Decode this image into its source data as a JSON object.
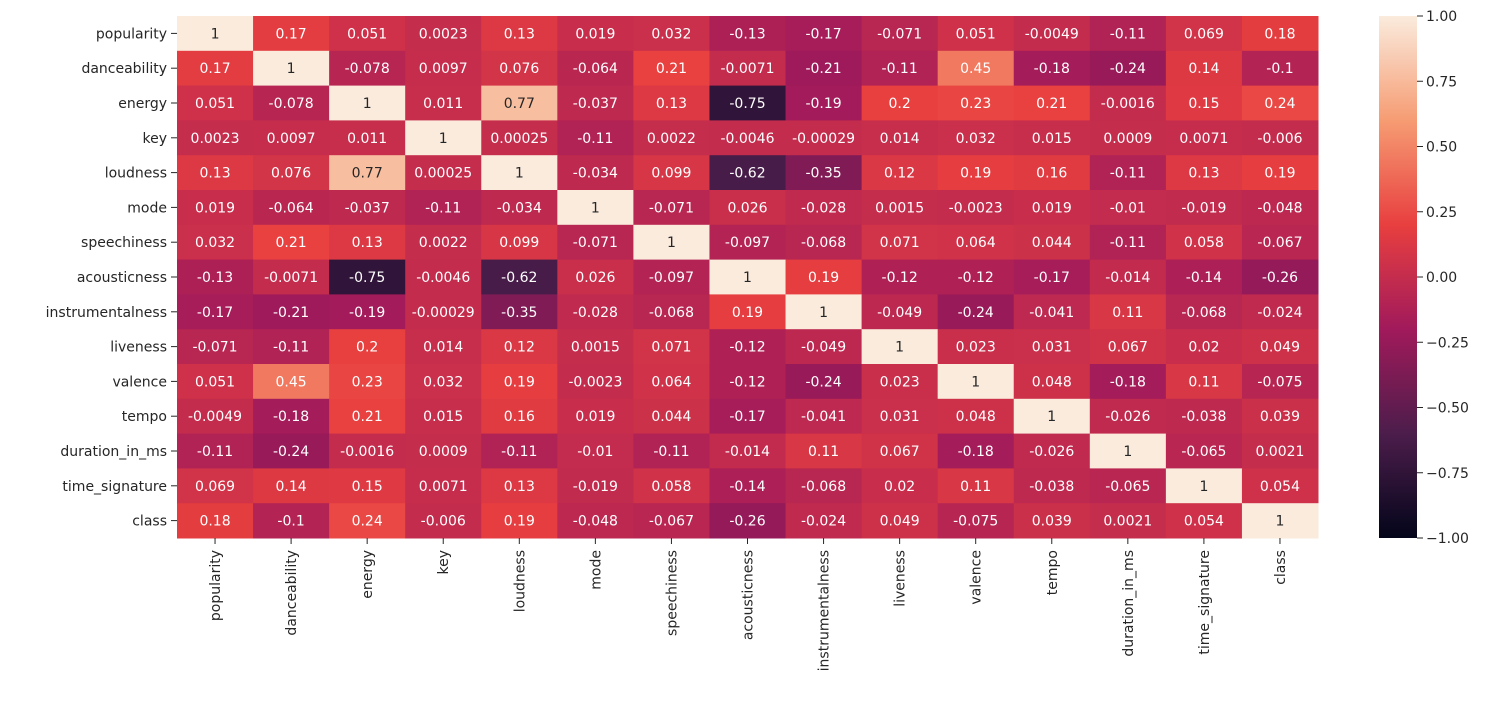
{
  "chart_data": {
    "type": "heatmap",
    "labels": [
      "popularity",
      "danceability",
      "energy",
      "key",
      "loudness",
      "mode",
      "speechiness",
      "acousticness",
      "instrumentalness",
      "liveness",
      "valence",
      "tempo",
      "duration_in_ms",
      "time_signature",
      "class"
    ],
    "cell_labels": [
      [
        "1",
        "0.17",
        "0.051",
        "0.0023",
        "0.13",
        "0.019",
        "0.032",
        "-0.13",
        "-0.17",
        "-0.071",
        "0.051",
        "-0.0049",
        "-0.11",
        "0.069",
        "0.18"
      ],
      [
        "0.17",
        "1",
        "-0.078",
        "0.0097",
        "0.076",
        "-0.064",
        "0.21",
        "-0.0071",
        "-0.21",
        "-0.11",
        "0.45",
        "-0.18",
        "-0.24",
        "0.14",
        "-0.1"
      ],
      [
        "0.051",
        "-0.078",
        "1",
        "0.011",
        "0.77",
        "-0.037",
        "0.13",
        "-0.75",
        "-0.19",
        "0.2",
        "0.23",
        "0.21",
        "-0.0016",
        "0.15",
        "0.24"
      ],
      [
        "0.0023",
        "0.0097",
        "0.011",
        "1",
        "0.00025",
        "-0.11",
        "0.0022",
        "-0.0046",
        "-0.00029",
        "0.014",
        "0.032",
        "0.015",
        "0.0009",
        "0.0071",
        "-0.006"
      ],
      [
        "0.13",
        "0.076",
        "0.77",
        "0.00025",
        "1",
        "-0.034",
        "0.099",
        "-0.62",
        "-0.35",
        "0.12",
        "0.19",
        "0.16",
        "-0.11",
        "0.13",
        "0.19"
      ],
      [
        "0.019",
        "-0.064",
        "-0.037",
        "-0.11",
        "-0.034",
        "1",
        "-0.071",
        "0.026",
        "-0.028",
        "0.0015",
        "-0.0023",
        "0.019",
        "-0.01",
        "-0.019",
        "-0.048"
      ],
      [
        "0.032",
        "0.21",
        "0.13",
        "0.0022",
        "0.099",
        "-0.071",
        "1",
        "-0.097",
        "-0.068",
        "0.071",
        "0.064",
        "0.044",
        "-0.11",
        "0.058",
        "-0.067"
      ],
      [
        "-0.13",
        "-0.0071",
        "-0.75",
        "-0.0046",
        "-0.62",
        "0.026",
        "-0.097",
        "1",
        "0.19",
        "-0.12",
        "-0.12",
        "-0.17",
        "-0.014",
        "-0.14",
        "-0.26"
      ],
      [
        "-0.17",
        "-0.21",
        "-0.19",
        "-0.00029",
        "-0.35",
        "-0.028",
        "-0.068",
        "0.19",
        "1",
        "-0.049",
        "-0.24",
        "-0.041",
        "0.11",
        "-0.068",
        "-0.024"
      ],
      [
        "-0.071",
        "-0.11",
        "0.2",
        "0.014",
        "0.12",
        "0.0015",
        "0.071",
        "-0.12",
        "-0.049",
        "1",
        "0.023",
        "0.031",
        "0.067",
        "0.02",
        "0.049"
      ],
      [
        "0.051",
        "0.45",
        "0.23",
        "0.032",
        "0.19",
        "-0.0023",
        "0.064",
        "-0.12",
        "-0.24",
        "0.023",
        "1",
        "0.048",
        "-0.18",
        "0.11",
        "-0.075"
      ],
      [
        "-0.0049",
        "-0.18",
        "0.21",
        "0.015",
        "0.16",
        "0.019",
        "0.044",
        "-0.17",
        "-0.041",
        "0.031",
        "0.048",
        "1",
        "-0.026",
        "-0.038",
        "0.039"
      ],
      [
        "-0.11",
        "-0.24",
        "-0.0016",
        "0.0009",
        "-0.11",
        "-0.01",
        "-0.11",
        "-0.014",
        "0.11",
        "0.067",
        "-0.18",
        "-0.026",
        "1",
        "-0.065",
        "0.0021"
      ],
      [
        "0.069",
        "0.14",
        "0.15",
        "0.0071",
        "0.13",
        "-0.019",
        "0.058",
        "-0.14",
        "-0.068",
        "0.02",
        "0.11",
        "-0.038",
        "-0.065",
        "1",
        "0.054"
      ],
      [
        "0.18",
        "-0.1",
        "0.24",
        "-0.006",
        "0.19",
        "-0.048",
        "-0.067",
        "-0.26",
        "-0.024",
        "0.049",
        "-0.075",
        "0.039",
        "0.0021",
        "0.054",
        "1"
      ]
    ],
    "colorbar": {
      "range": [
        -1,
        1
      ],
      "ticks": [
        "1.00",
        "0.75",
        "0.50",
        "0.25",
        "0.00",
        "−0.25",
        "−0.50",
        "−0.75",
        "−1.00"
      ],
      "colormap": "rocket"
    }
  }
}
